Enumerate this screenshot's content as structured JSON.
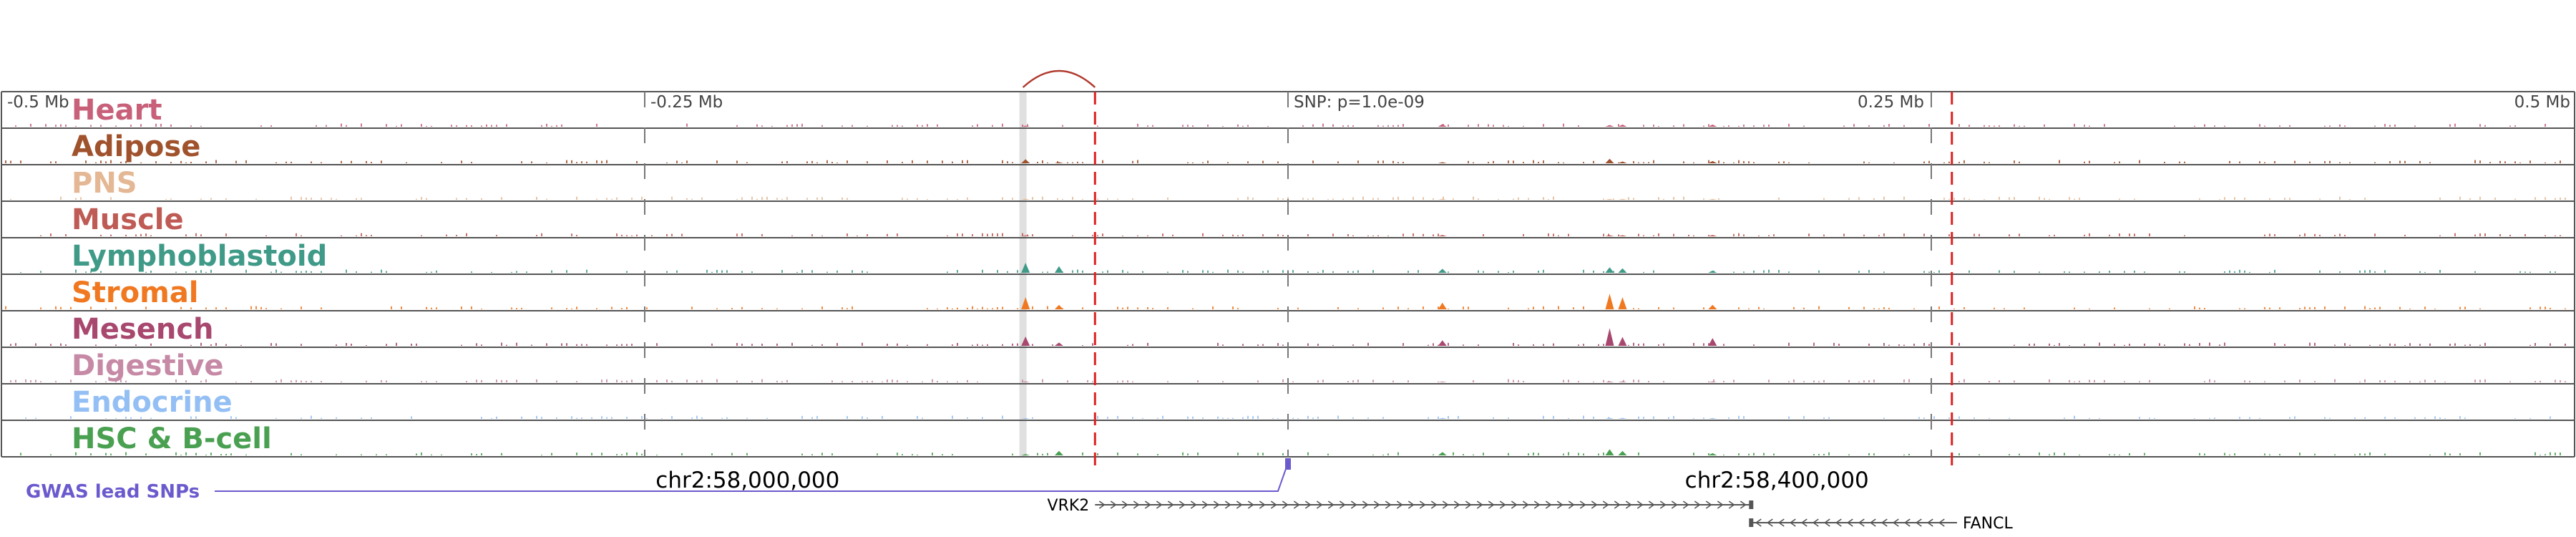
{
  "axis": {
    "ticks": [
      {
        "position_mb": -0.5,
        "label": "-0.5 Mb"
      },
      {
        "position_mb": -0.25,
        "label": "-0.25 Mb"
      },
      {
        "position_mb": 0,
        "label": "SNP: p=1.0e-09"
      },
      {
        "position_mb": 0.25,
        "label": "0.25 Mb"
      },
      {
        "position_mb": 0.5,
        "label": "0.5 Mb"
      }
    ]
  },
  "tracks": [
    {
      "name": "Heart",
      "color": "#c8607a"
    },
    {
      "name": "Adipose",
      "color": "#a0522d"
    },
    {
      "name": "PNS",
      "color": "#e4b894"
    },
    {
      "name": "Muscle",
      "color": "#bf5b55"
    },
    {
      "name": "Lymphoblastoid",
      "color": "#3f9a88"
    },
    {
      "name": "Stromal",
      "color": "#f07820"
    },
    {
      "name": "Mesench",
      "color": "#a8486e"
    },
    {
      "name": "Digestive",
      "color": "#c78aa6"
    },
    {
      "name": "Endocrine",
      "color": "#94bff4"
    },
    {
      "name": "HSC & B-cell",
      "color": "#4aa051"
    }
  ],
  "coordinates": [
    {
      "label": "chr2:58,000,000",
      "position_mb": -0.21
    },
    {
      "label": "chr2:58,400,000",
      "position_mb": 0.19
    }
  ],
  "gwas": {
    "label": "GWAS lead SNPs",
    "color": "#6a5acd",
    "snp_position_mb": 0
  },
  "genes": [
    {
      "name": "VRK2",
      "start_mb": -0.075,
      "end_mb": 0.18,
      "strand": "+"
    },
    {
      "name": "FANCL",
      "start_mb": 0.18,
      "end_mb": 0.26,
      "strand": "-"
    }
  ],
  "highlights": {
    "gray_band_mb": -0.103,
    "red_dashed_mb": [
      -0.075,
      0.258
    ],
    "loop": {
      "from_mb": -0.103,
      "to_mb": -0.075,
      "color": "#b03a2e"
    }
  },
  "peaks": [
    {
      "position_mb": -0.102,
      "heights": [
        0.05,
        0.18,
        0.05,
        0.04,
        0.45,
        0.55,
        0.42,
        0.05,
        0.04,
        0.06
      ]
    },
    {
      "position_mb": -0.089,
      "heights": [
        0.03,
        0.05,
        0.03,
        0.03,
        0.3,
        0.2,
        0.15,
        0.03,
        0.03,
        0.2
      ]
    },
    {
      "position_mb": 0.125,
      "heights": [
        0.08,
        0.2,
        0.04,
        0.05,
        0.25,
        0.7,
        0.8,
        0.05,
        0.05,
        0.28
      ]
    },
    {
      "position_mb": 0.13,
      "heights": [
        0.1,
        0.08,
        0.04,
        0.05,
        0.2,
        0.55,
        0.4,
        0.05,
        0.05,
        0.2
      ]
    },
    {
      "position_mb": 0.06,
      "heights": [
        0.12,
        0.05,
        0.04,
        0.06,
        0.18,
        0.3,
        0.25,
        0.04,
        0.04,
        0.15
      ]
    },
    {
      "position_mb": 0.165,
      "heights": [
        0.1,
        0.1,
        0.04,
        0.06,
        0.1,
        0.2,
        0.35,
        0.04,
        0.04,
        0.1
      ]
    }
  ]
}
